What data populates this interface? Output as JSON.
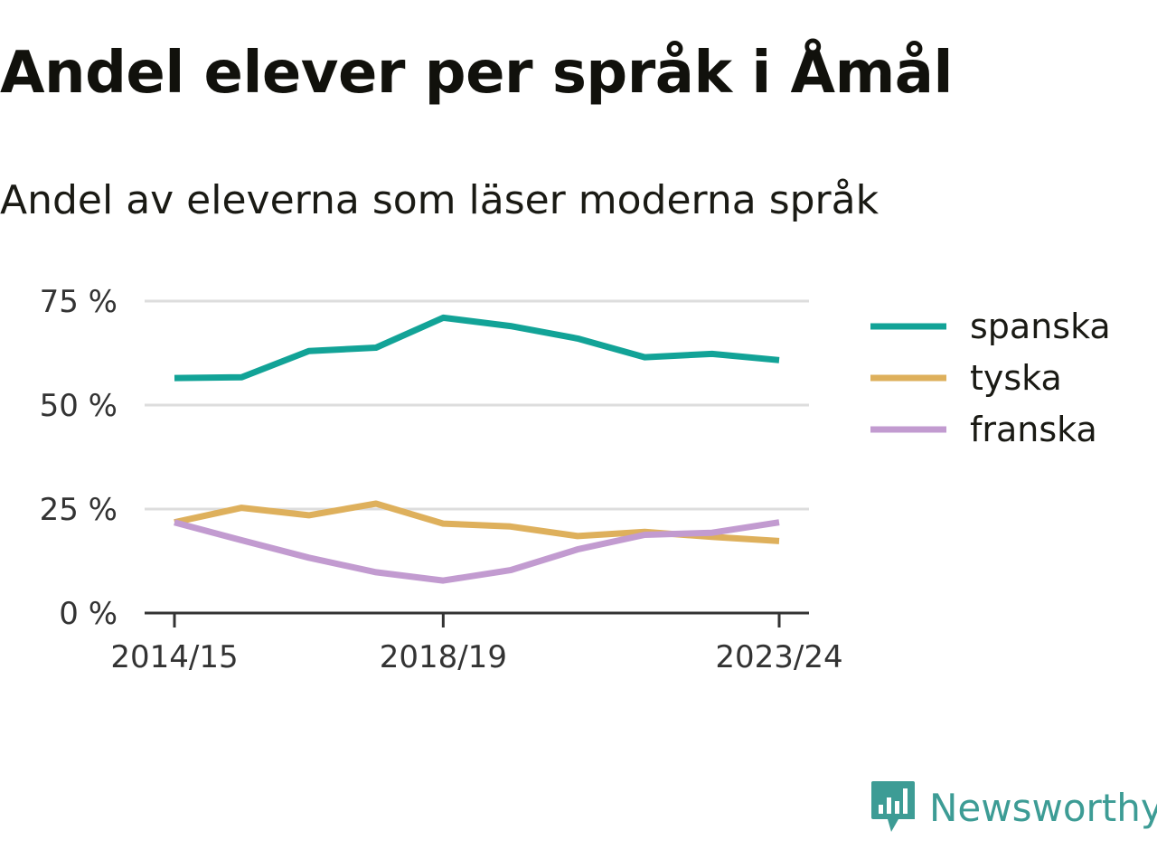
{
  "title": "Andel elever per språk i Åmål",
  "subtitle": "Andel av eleverna som läser moderna språk",
  "brand": "Newsworthy",
  "colors": {
    "spanska": "#12a397",
    "tyska": "#deb05c",
    "franska": "#c29bd0",
    "grid": "#dddddd",
    "axis": "#333333",
    "brand": "#3d9c95"
  },
  "chart_data": {
    "type": "line",
    "x": [
      "2014/15",
      "2015/16",
      "2016/17",
      "2017/18",
      "2018/19",
      "2019/20",
      "2020/21",
      "2021/22",
      "2022/23",
      "2023/24"
    ],
    "x_tick_labels": [
      "2014/15",
      "2018/19",
      "2023/24"
    ],
    "y_ticks": [
      0,
      25,
      50,
      75
    ],
    "y_tick_labels": [
      "0 %",
      "25 %",
      "50 %",
      "75 %"
    ],
    "ylim": [
      0,
      75
    ],
    "grid": true,
    "legend": "right",
    "series": [
      {
        "name": "spanska",
        "values": [
          56.5,
          56.7,
          63,
          63.8,
          71,
          69,
          66,
          61.5,
          62.3,
          60.8
        ]
      },
      {
        "name": "tyska",
        "values": [
          21.8,
          25.3,
          23.5,
          26.3,
          21.5,
          20.8,
          18.5,
          19.5,
          18.3,
          17.3
        ]
      },
      {
        "name": "franska",
        "values": [
          21.8,
          17.5,
          13.3,
          9.8,
          7.8,
          10.3,
          15.3,
          18.8,
          19.3,
          21.8
        ]
      }
    ]
  }
}
